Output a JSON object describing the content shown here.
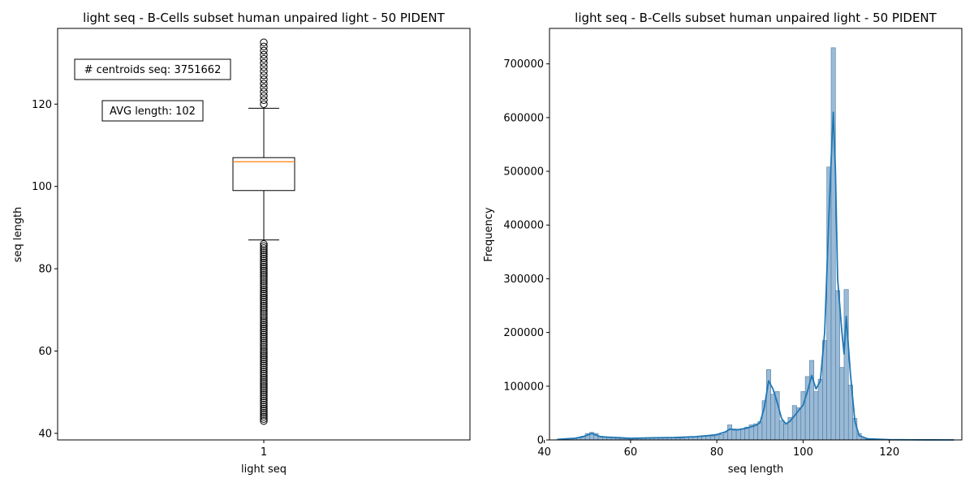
{
  "chart_data": [
    {
      "type": "box",
      "title": "light seq - B-Cells subset human unpaired light - 50 PIDENT",
      "xlabel": "light seq",
      "ylabel": "seq length",
      "categories": [
        "1"
      ],
      "ylim": [
        38.4,
        138.4
      ],
      "yticks": [
        40,
        60,
        80,
        100,
        120
      ],
      "box": {
        "whisker_low": 87,
        "q1": 99,
        "median": 106,
        "q3": 107,
        "whisker_high": 119,
        "outliers_low_range": [
          43,
          86
        ],
        "outliers_high_range": [
          120,
          135
        ]
      },
      "annotations": [
        "# centroids seq: 3751662",
        "AVG length: 102"
      ],
      "colors": {
        "box": "#000000",
        "median": "#ff7f0e",
        "outlier": "#000000"
      },
      "grid": false,
      "legend": "none"
    },
    {
      "type": "histogram",
      "title": "light seq - B-Cells subset human unpaired light - 50 PIDENT",
      "xlabel": "seq length",
      "ylabel": "Frequency",
      "xlim": [
        41.2,
        136.8
      ],
      "ylim": [
        0,
        766000
      ],
      "xticks": [
        40,
        60,
        80,
        100,
        120
      ],
      "yticks": [
        0,
        100000,
        200000,
        300000,
        400000,
        500000,
        600000,
        700000
      ],
      "bins": {
        "x": [
          43,
          44,
          45,
          46,
          47,
          48,
          49,
          50,
          51,
          52,
          53,
          54,
          55,
          56,
          57,
          58,
          59,
          60,
          61,
          62,
          63,
          64,
          65,
          66,
          67,
          68,
          69,
          70,
          71,
          72,
          73,
          74,
          75,
          76,
          77,
          78,
          79,
          80,
          81,
          82,
          83,
          84,
          85,
          86,
          87,
          88,
          89,
          90,
          91,
          92,
          93,
          94,
          95,
          96,
          97,
          98,
          99,
          100,
          101,
          102,
          103,
          104,
          105,
          106,
          107,
          108,
          109,
          110,
          111,
          112,
          113,
          114,
          115,
          116,
          117,
          118,
          119,
          120,
          121,
          122,
          123,
          124,
          125,
          126,
          127,
          128,
          129,
          130,
          131,
          132,
          133,
          134,
          135
        ],
        "values": [
          500,
          800,
          1200,
          2000,
          3000,
          4500,
          7000,
          12000,
          14000,
          12000,
          7000,
          5000,
          5000,
          5000,
          3000,
          2500,
          2000,
          1500,
          2000,
          2500,
          3000,
          3500,
          3500,
          4000,
          4500,
          4500,
          4000,
          4000,
          3500,
          3500,
          5000,
          5500,
          6000,
          6500,
          7000,
          7500,
          7000,
          8000,
          10000,
          14000,
          28000,
          18000,
          20000,
          21000,
          24000,
          28000,
          30000,
          34000,
          73000,
          131000,
          85000,
          90000,
          36000,
          30000,
          42000,
          64000,
          60000,
          90000,
          118000,
          148000,
          90000,
          113000,
          185000,
          508000,
          730000,
          278000,
          135000,
          280000,
          102000,
          40000,
          12000,
          3000,
          1000,
          500,
          300,
          200,
          150,
          100,
          100,
          80,
          60,
          50,
          40,
          30,
          30,
          20,
          20,
          15,
          10,
          10,
          8,
          5,
          5
        ]
      },
      "kde": {
        "x": [
          43,
          45,
          47,
          49,
          50,
          51,
          52,
          53,
          55,
          58,
          60,
          65,
          70,
          75,
          78,
          80,
          82,
          83,
          85,
          87,
          89,
          90,
          91,
          92,
          93,
          94,
          95,
          96,
          97,
          98,
          99,
          100,
          101,
          102,
          103,
          104,
          105,
          106,
          106.5,
          107,
          107.5,
          108,
          109,
          109.5,
          110,
          111,
          112,
          113,
          115,
          120,
          125,
          130,
          135
        ],
        "y": [
          1000,
          2000,
          3000,
          6000,
          9000,
          12000,
          9000,
          6000,
          5000,
          4000,
          3000,
          4000,
          4500,
          6000,
          8000,
          10000,
          15000,
          20000,
          19000,
          22000,
          27000,
          32000,
          60000,
          110000,
          95000,
          70000,
          40000,
          30000,
          35000,
          45000,
          55000,
          65000,
          90000,
          120000,
          95000,
          110000,
          200000,
          420000,
          520000,
          610000,
          500000,
          300000,
          200000,
          160000,
          230000,
          120000,
          35000,
          8000,
          2000,
          500,
          200,
          100,
          50
        ]
      },
      "colors": {
        "bar_fill": "#8fb3d2",
        "bar_edge": "#4e7aa3",
        "kde_line": "#1f77b4"
      },
      "grid": false,
      "legend": "none"
    }
  ]
}
